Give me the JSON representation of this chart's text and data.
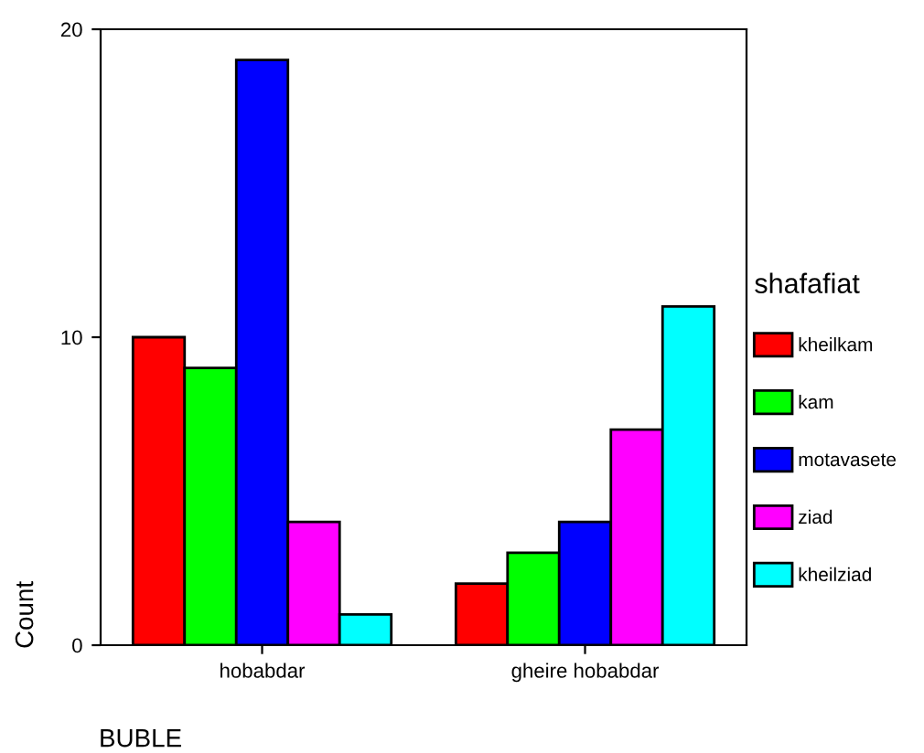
{
  "chart_data": {
    "type": "bar",
    "xlabel": "BUBLE",
    "ylabel": "Count",
    "legend_title": "shafafiat",
    "categories": [
      "hobabdar",
      "gheire hobabdar"
    ],
    "series": [
      {
        "name": "kheilkam",
        "color": "#ff0000",
        "values": [
          10,
          2
        ]
      },
      {
        "name": "kam",
        "color": "#00ff00",
        "values": [
          9,
          3
        ]
      },
      {
        "name": "motavasete",
        "color": "#0000ff",
        "values": [
          19,
          4
        ]
      },
      {
        "name": "ziad",
        "color": "#ff00ff",
        "values": [
          4,
          7
        ]
      },
      {
        "name": "kheilziad",
        "color": "#00ffff",
        "values": [
          1,
          11
        ]
      }
    ],
    "ylim": [
      0,
      20
    ],
    "yticks": [
      0,
      10,
      20
    ],
    "grid": false,
    "legend": "right"
  }
}
